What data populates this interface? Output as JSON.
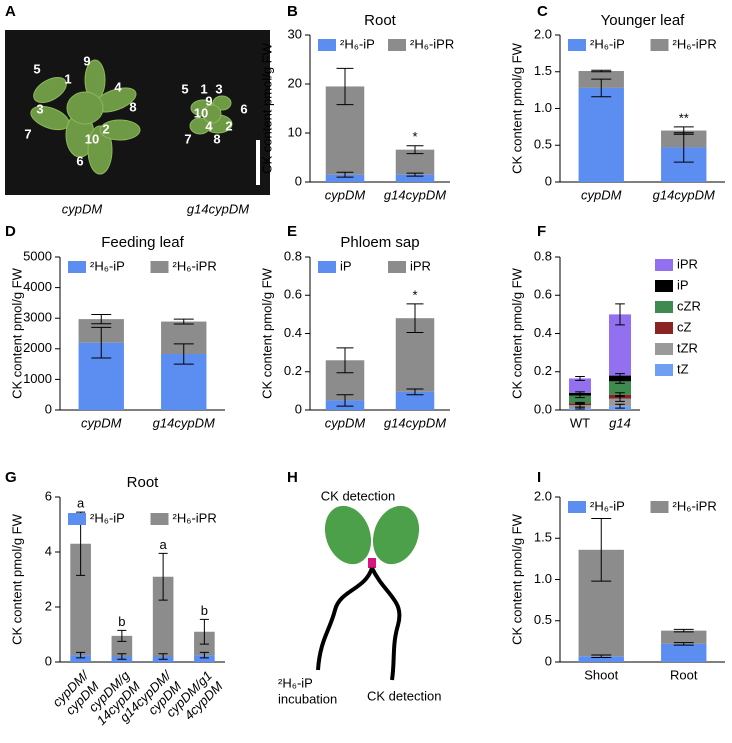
{
  "panel_labels": [
    "A",
    "B",
    "C",
    "D",
    "E",
    "F",
    "G",
    "H",
    "I"
  ],
  "photo": {
    "left_numbers": [
      "5",
      "1",
      "9",
      "4",
      "3",
      "8",
      "7",
      "10",
      "2",
      "6"
    ],
    "right_numbers": [
      "5",
      "1",
      "3",
      "9",
      "6",
      "10",
      "7",
      "4",
      "2",
      "8"
    ],
    "labels": [
      "cypDM",
      "g14cypDM"
    ]
  },
  "diagram": {
    "top": "CK detection",
    "left": [
      "²H₆-iP",
      "incubation"
    ],
    "right": "CK detection"
  },
  "chart_data": [
    {
      "type": "bar",
      "title": "Root",
      "ylabel": "CK content pmol/g FW",
      "categories": [
        "cypDM",
        "g14cypDM"
      ],
      "series": [
        {
          "name": "²H₆-iP",
          "color": "#5c8ef2",
          "values": [
            1.5,
            1.5
          ],
          "errors": [
            0.5,
            0.3
          ]
        },
        {
          "name": "²H₆-iPR",
          "color": "#8c8c8c",
          "values": [
            18,
            5.1
          ],
          "errors": [
            3.7,
            0.8
          ]
        }
      ],
      "annotations": [
        null,
        "*"
      ],
      "ylim": [
        0,
        30
      ],
      "yticks": [
        0,
        10,
        20,
        30
      ]
    },
    {
      "type": "bar",
      "title": "Younger leaf",
      "ylabel": "CK content pmol/g FW",
      "categories": [
        "cypDM",
        "g14cypDM"
      ],
      "series": [
        {
          "name": "²H₆-iP",
          "color": "#5c8ef2",
          "values": [
            1.28,
            0.47
          ],
          "errors": [
            0.12,
            0.2
          ]
        },
        {
          "name": "²H₆-iPR",
          "color": "#8c8c8c",
          "values": [
            0.23,
            0.23
          ],
          "errors": [
            0.01,
            0.05
          ]
        }
      ],
      "annotations": [
        null,
        "**"
      ],
      "ylim": [
        0,
        2
      ],
      "yticks": [
        0,
        0.5,
        {
          "value": 1,
          "label": "1.0"
        },
        1.5,
        {
          "value": 2,
          "label": "2.0"
        }
      ]
    },
    {
      "type": "bar",
      "title": "Feeding leaf",
      "ylabel": "CK content pmol/g FW",
      "categories": [
        "cypDM",
        "g14cypDM"
      ],
      "series": [
        {
          "name": "²H₆-iP",
          "color": "#5c8ef2",
          "values": [
            2200,
            1830
          ],
          "errors": [
            500,
            330
          ]
        },
        {
          "name": "²H₆-iPR",
          "color": "#8c8c8c",
          "values": [
            770,
            1060
          ],
          "errors": [
            150,
            80
          ]
        }
      ],
      "ylim": [
        0,
        5000
      ],
      "yticks": [
        0,
        1000,
        2000,
        3000,
        4000,
        5000
      ]
    },
    {
      "type": "bar",
      "title": "Phloem sap",
      "ylabel": "CK content pmol/g FW",
      "categories": [
        "cypDM",
        "g14cypDM"
      ],
      "series": [
        {
          "name": "iP",
          "color": "#5c8ef2",
          "values": [
            0.05,
            0.095
          ],
          "errors": [
            0.03,
            0.015
          ]
        },
        {
          "name": "iPR",
          "color": "#8c8c8c",
          "values": [
            0.21,
            0.385
          ],
          "errors": [
            0.065,
            0.075
          ]
        }
      ],
      "annotations": [
        null,
        "*"
      ],
      "ylim": [
        0,
        0.8
      ],
      "yticks": [
        0,
        0.2,
        0.4,
        0.6,
        0.8
      ]
    },
    {
      "type": "bar",
      "ylabel": "CK content pmol/g FW",
      "categories": [
        "WT",
        "g14"
      ],
      "series": [
        {
          "name": "tZ",
          "color": "#6f9ff2",
          "values": [
            0.01,
            0.02
          ],
          "errors": [
            0.005,
            0.01
          ]
        },
        {
          "name": "tZR",
          "color": "#9a9a9a",
          "values": [
            0.015,
            0.04
          ],
          "errors": [
            0.01,
            0.015
          ]
        },
        {
          "name": "cZ",
          "color": "#8b2323",
          "values": [
            0.01,
            0.02
          ],
          "errors": [
            0.005,
            0.01
          ]
        },
        {
          "name": "cZR",
          "color": "#3f8a4f",
          "values": [
            0.04,
            0.07
          ],
          "errors": [
            0.01,
            0.01
          ]
        },
        {
          "name": "iP",
          "color": "#000000",
          "values": [
            0.015,
            0.03
          ],
          "errors": [
            0.005,
            0.01
          ]
        },
        {
          "name": "iPR",
          "color": "#9370f0",
          "values": [
            0.075,
            0.32
          ],
          "errors": [
            0.01,
            0.055
          ]
        }
      ],
      "ylim": [
        0,
        0.8
      ],
      "yticks": [
        {
          "value": 0,
          "label": "0.0"
        },
        0.2,
        0.4,
        0.6,
        0.8
      ]
    },
    {
      "type": "bar",
      "title": "Root",
      "ylabel": "CK content pmol/g FW",
      "categories": [
        [
          "cypDM/",
          "cypDM"
        ],
        [
          "cypDM/g",
          "14cypDM"
        ],
        [
          "g14cypDM/",
          "cypDM"
        ],
        [
          "cypDM/g1",
          "4cypDM"
        ]
      ],
      "series": [
        {
          "name": "²H₆-iP",
          "color": "#5c8ef2",
          "values": [
            0.25,
            0.2,
            0.2,
            0.25
          ],
          "errors": [
            0.1,
            0.1,
            0.1,
            0.1
          ]
        },
        {
          "name": "²H₆-iPR",
          "color": "#8c8c8c",
          "values": [
            4.05,
            0.75,
            2.9,
            0.85
          ],
          "errors": [
            1.15,
            0.2,
            0.85,
            0.45
          ]
        }
      ],
      "annotations": [
        "a",
        "b",
        "a",
        "b"
      ],
      "ylim": [
        0,
        6
      ],
      "yticks": [
        0,
        2,
        4,
        6
      ]
    },
    {
      "type": "bar",
      "ylabel": "CK content pmol/g FW",
      "categories": [
        "Shoot",
        "Root"
      ],
      "series": [
        {
          "name": "²H₆-iP",
          "color": "#5c8ef2",
          "values": [
            0.07,
            0.22
          ],
          "errors": [
            0.015,
            0.015
          ]
        },
        {
          "name": "²H₆-iPR",
          "color": "#8c8c8c",
          "values": [
            1.29,
            0.16
          ],
          "errors": [
            0.38,
            0.015
          ]
        }
      ],
      "ylim": [
        0,
        2
      ],
      "yticks": [
        0,
        0.5,
        {
          "value": 1,
          "label": "1.0"
        },
        1.5,
        {
          "value": 2,
          "label": "2.0"
        }
      ]
    }
  ]
}
